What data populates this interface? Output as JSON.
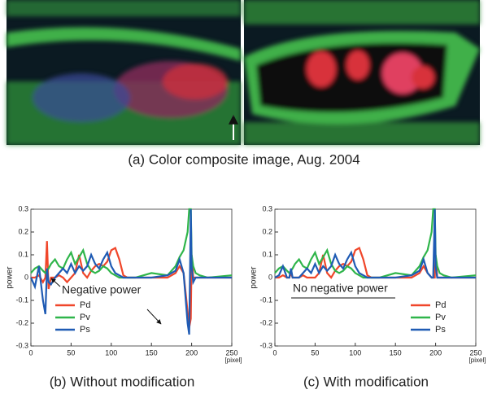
{
  "image_caption": "(a) Color composite image, Aug. 2004",
  "chart_data": [
    {
      "type": "line",
      "caption": "(b) Without modification",
      "ylabel": "power",
      "xlabel": "[pixel]",
      "annotation": "Negative power",
      "legend": "lower left",
      "xlim": [
        0,
        250
      ],
      "xticks": [
        0,
        50,
        100,
        150,
        200,
        250
      ],
      "ylim": [
        -0.3,
        0.3
      ],
      "yticks": [
        -0.3,
        -0.2,
        -0.1,
        0,
        0.1,
        0.2,
        0.3
      ],
      "x": [
        0,
        5,
        10,
        15,
        18,
        20,
        22,
        25,
        30,
        35,
        40,
        45,
        50,
        55,
        60,
        65,
        70,
        75,
        80,
        85,
        90,
        95,
        100,
        105,
        110,
        115,
        120,
        130,
        150,
        170,
        180,
        185,
        190,
        195,
        197,
        199,
        200,
        202,
        205,
        210,
        220,
        250
      ],
      "series": [
        {
          "name": "Pd",
          "color": "#f0462a",
          "values": [
            0,
            0,
            0.01,
            -0.02,
            0,
            0.16,
            -0.05,
            0,
            0,
            0.01,
            0,
            -0.02,
            0,
            0.02,
            0.1,
            0.02,
            0,
            0.03,
            0.05,
            0.06,
            0.05,
            0.07,
            0.12,
            0.13,
            0.08,
            0.01,
            0,
            0,
            0,
            0,
            0.02,
            0.05,
            0.02,
            -0.15,
            -0.22,
            -0.18,
            0.1,
            0,
            0,
            0,
            0,
            0
          ]
        },
        {
          "name": "Pv",
          "color": "#2fb54a",
          "values": [
            0.02,
            0.04,
            0.05,
            0.03,
            0.02,
            0.03,
            0.04,
            0.06,
            0.08,
            0.05,
            0.04,
            0.08,
            0.11,
            0.06,
            0.09,
            0.12,
            0.06,
            0.03,
            0.02,
            0.03,
            0.05,
            0.04,
            0.02,
            0.01,
            0,
            0,
            0,
            0,
            0.02,
            0.01,
            0.05,
            0.09,
            0.12,
            0.2,
            0.3,
            0.3,
            0.1,
            0.05,
            0.02,
            0.01,
            0,
            0.01
          ]
        },
        {
          "name": "Ps",
          "color": "#1f5bb4",
          "values": [
            0,
            -0.04,
            0.05,
            -0.1,
            -0.16,
            0.04,
            -0.02,
            -0.03,
            0,
            0.02,
            0.04,
            0.02,
            0.06,
            0.02,
            0.05,
            0.03,
            0.05,
            0.1,
            0.06,
            0.04,
            0.08,
            0.11,
            0.05,
            0.02,
            0.01,
            0,
            0,
            0,
            0,
            0.01,
            0.03,
            0.08,
            0.02,
            -0.2,
            -0.25,
            0.3,
            0.05,
            -0.02,
            0,
            0,
            0,
            0
          ]
        }
      ]
    },
    {
      "type": "line",
      "caption": "(c) With modification",
      "ylabel": "power",
      "xlabel": "[pixel]",
      "annotation": "No negative power",
      "legend": "lower right",
      "xlim": [
        0,
        250
      ],
      "xticks": [
        0,
        50,
        100,
        150,
        200,
        250
      ],
      "ylim": [
        -0.3,
        0.3
      ],
      "yticks": [
        -0.3,
        -0.2,
        -0.1,
        0,
        0.1,
        0.2,
        0.3
      ],
      "x": [
        0,
        5,
        10,
        15,
        18,
        20,
        22,
        25,
        30,
        35,
        40,
        45,
        50,
        55,
        60,
        65,
        70,
        75,
        80,
        85,
        90,
        95,
        100,
        105,
        110,
        115,
        120,
        130,
        150,
        170,
        180,
        185,
        190,
        195,
        197,
        199,
        200,
        202,
        205,
        210,
        220,
        250
      ],
      "series": [
        {
          "name": "Pd",
          "color": "#f0462a",
          "values": [
            0,
            0,
            0.01,
            0,
            0,
            0.02,
            0,
            0,
            0,
            0.01,
            0,
            0,
            0,
            0.02,
            0.1,
            0.02,
            0,
            0.03,
            0.05,
            0.06,
            0.05,
            0.07,
            0.12,
            0.13,
            0.08,
            0.01,
            0,
            0,
            0,
            0,
            0.02,
            0.05,
            0.02,
            0,
            0,
            0,
            0.1,
            0,
            0,
            0,
            0,
            0
          ]
        },
        {
          "name": "Pv",
          "color": "#2fb54a",
          "values": [
            0.02,
            0.04,
            0.05,
            0.03,
            0.02,
            0.03,
            0.04,
            0.06,
            0.08,
            0.05,
            0.04,
            0.08,
            0.11,
            0.06,
            0.09,
            0.12,
            0.06,
            0.03,
            0.02,
            0.03,
            0.05,
            0.04,
            0.02,
            0.01,
            0,
            0,
            0,
            0,
            0.02,
            0.01,
            0.05,
            0.09,
            0.12,
            0.2,
            0.3,
            0.3,
            0.1,
            0.05,
            0.02,
            0.01,
            0,
            0.01
          ]
        },
        {
          "name": "Ps",
          "color": "#1f5bb4",
          "values": [
            0,
            0.01,
            0.05,
            0,
            0,
            0.04,
            0,
            0,
            0,
            0.02,
            0.04,
            0.02,
            0.06,
            0.02,
            0.05,
            0.03,
            0.05,
            0.1,
            0.06,
            0.04,
            0.08,
            0.11,
            0.05,
            0.02,
            0.01,
            0,
            0,
            0,
            0,
            0.01,
            0.03,
            0.08,
            0.02,
            0,
            0,
            0.3,
            0.05,
            0,
            0,
            0,
            0,
            0
          ]
        }
      ]
    }
  ]
}
